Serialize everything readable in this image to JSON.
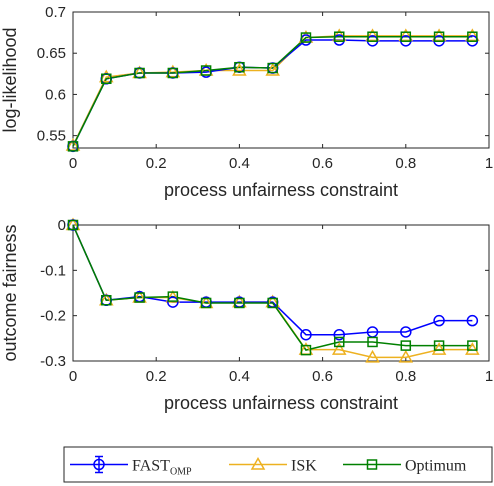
{
  "chart_data": [
    {
      "type": "line",
      "xlabel": "process unfairness constraint",
      "ylabel": "log-likelihood",
      "xlim": [
        0,
        1
      ],
      "ylim": [
        0.535,
        0.7
      ],
      "xticks": [
        "0",
        "0.2",
        "0.4",
        "0.6",
        "0.8",
        "1"
      ],
      "yticks": [
        "0.55",
        "0.6",
        "0.65",
        "0.7"
      ],
      "x": [
        0,
        0.08,
        0.16,
        0.24,
        0.32,
        0.4,
        0.48,
        0.56,
        0.64,
        0.72,
        0.8,
        0.88,
        0.96
      ],
      "series": [
        {
          "name": "FAST_OMP",
          "color": "#0000ff",
          "marker": "circle",
          "values": [
            0.537,
            0.619,
            0.626,
            0.626,
            0.627,
            0.633,
            0.632,
            0.666,
            0.666,
            0.665,
            0.665,
            0.665,
            0.665
          ]
        },
        {
          "name": "ISK",
          "color": "#edb120",
          "marker": "triangle",
          "values": [
            0.538,
            0.621,
            0.626,
            0.627,
            0.629,
            0.629,
            0.629,
            0.669,
            0.671,
            0.671,
            0.671,
            0.671,
            0.671
          ]
        },
        {
          "name": "Optimum",
          "color": "#008000",
          "marker": "square",
          "values": [
            0.537,
            0.619,
            0.626,
            0.626,
            0.629,
            0.633,
            0.632,
            0.669,
            0.67,
            0.67,
            0.67,
            0.67,
            0.67
          ]
        }
      ]
    },
    {
      "type": "line",
      "xlabel": "process unfairness constraint",
      "ylabel": "outcome fairness",
      "xlim": [
        0,
        1
      ],
      "ylim": [
        -0.3,
        0
      ],
      "xticks": [
        "0",
        "0.2",
        "0.4",
        "0.6",
        "0.8",
        "1"
      ],
      "yticks": [
        "-0.3",
        "-0.2",
        "-0.1",
        "0"
      ],
      "x": [
        0,
        0.08,
        0.16,
        0.24,
        0.32,
        0.4,
        0.48,
        0.56,
        0.64,
        0.72,
        0.8,
        0.88,
        0.96
      ],
      "series": [
        {
          "name": "FAST_OMP",
          "color": "#0000ff",
          "marker": "circle",
          "values": [
            0,
            -0.166,
            -0.158,
            -0.17,
            -0.17,
            -0.17,
            -0.17,
            -0.242,
            -0.242,
            -0.236,
            -0.236,
            -0.211,
            -0.211
          ]
        },
        {
          "name": "ISK",
          "color": "#edb120",
          "marker": "triangle",
          "values": [
            0,
            -0.166,
            -0.16,
            -0.16,
            -0.172,
            -0.17,
            -0.17,
            -0.275,
            -0.275,
            -0.292,
            -0.292,
            -0.275,
            -0.275
          ]
        },
        {
          "name": "Optimum",
          "color": "#008000",
          "marker": "square",
          "values": [
            0,
            -0.166,
            -0.16,
            -0.158,
            -0.172,
            -0.172,
            -0.172,
            -0.276,
            -0.258,
            -0.258,
            -0.266,
            -0.266,
            -0.266
          ]
        }
      ]
    }
  ],
  "legend": {
    "items": [
      {
        "main": "FAST",
        "sub": "OMP",
        "color": "#0000ff",
        "marker": "circle"
      },
      {
        "main": "ISK",
        "sub": "",
        "color": "#edb120",
        "marker": "triangle"
      },
      {
        "main": "Optimum",
        "sub": "",
        "color": "#008000",
        "marker": "square"
      }
    ]
  }
}
